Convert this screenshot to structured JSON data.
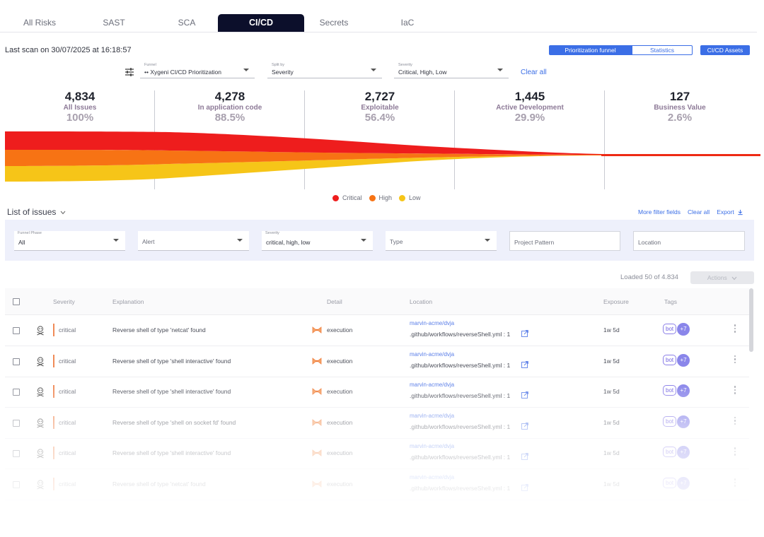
{
  "tabs": [
    {
      "label": "All Risks"
    },
    {
      "label": "SAST"
    },
    {
      "label": "SCA"
    },
    {
      "label": "CI/CD",
      "active": true
    },
    {
      "label": "Secrets"
    },
    {
      "label": "IaC"
    }
  ],
  "last_scan": "Last scan on 30/07/2025 at 16:18:57",
  "view_toggle": {
    "active": "Prioritization funnel",
    "inactive": "Statistics"
  },
  "assets_button": "CI/CD Assets",
  "funnel_filters": {
    "funnel": {
      "label": "Funnel",
      "value": "•• Xygeni CI/CD Prioritization"
    },
    "split_by": {
      "label": "Split by",
      "value": "Severity"
    },
    "severity": {
      "label": "Severity",
      "value": "Critical, High, Low"
    },
    "clear_all": "Clear all"
  },
  "funnel_stages": [
    {
      "count": "4,834",
      "name": "All Issues",
      "pct": "100%"
    },
    {
      "count": "4,278",
      "name": "In application code",
      "pct": "88.5%"
    },
    {
      "count": "2,727",
      "name": "Exploitable",
      "pct": "56.4%"
    },
    {
      "count": "1,445",
      "name": "Active Development",
      "pct": "29.9%"
    },
    {
      "count": "127",
      "name": "Business Value",
      "pct": "2.6%"
    }
  ],
  "legend": [
    {
      "label": "Critical",
      "color": "#ee1d1d"
    },
    {
      "label": "High",
      "color": "#f77314"
    },
    {
      "label": "Low",
      "color": "#f6c518"
    }
  ],
  "list": {
    "title": "List of issues",
    "more_filters": "More filter fields",
    "clear_all": "Clear all",
    "export": "Export",
    "filters": {
      "funnel_phase": {
        "label": "Funnel Phase",
        "value": "All"
      },
      "alert": {
        "placeholder": "Alert"
      },
      "severity": {
        "label": "Severity",
        "value": "critical, high, low"
      },
      "type": {
        "placeholder": "Type"
      },
      "project_pattern": {
        "placeholder": "Project Pattern"
      },
      "location": {
        "placeholder": "Location"
      }
    },
    "loaded": "Loaded 50 of 4.834",
    "actions": "Actions"
  },
  "table": {
    "headers": {
      "severity": "Severity",
      "explanation": "Explanation",
      "detail": "Detail",
      "location": "Location",
      "exposure": "Exposure",
      "tags": "Tags"
    },
    "rows": [
      {
        "severity": "critical",
        "explanation": "Reverse shell of type 'netcat' found",
        "detail": "execution",
        "repo": "marvin-acme/dvja",
        "path": ".github/workflows/reverseShell.yml : 1",
        "exposure": "1w 5d",
        "tag": "bot",
        "more_tags": "+7"
      },
      {
        "severity": "critical",
        "explanation": "Reverse shell of type 'shell interactive' found",
        "detail": "execution",
        "repo": "marvin-acme/dvja",
        "path": ".github/workflows/reverseShell.yml : 1",
        "exposure": "1w 5d",
        "tag": "bot",
        "more_tags": "+7"
      },
      {
        "severity": "critical",
        "explanation": "Reverse shell of type 'shell interactive' found",
        "detail": "execution",
        "repo": "marvin-acme/dvja",
        "path": ".github/workflows/reverseShell.yml : 1",
        "exposure": "1w 5d",
        "tag": "bot",
        "more_tags": "+7"
      },
      {
        "severity": "critical",
        "explanation": "Reverse shell of type 'shell on socket fd' found",
        "detail": "execution",
        "repo": "marvin-acme/dvja",
        "path": ".github/workflows/reverseShell.yml : 1",
        "exposure": "1w 5d",
        "tag": "bot",
        "more_tags": "+7"
      },
      {
        "severity": "critical",
        "explanation": "Reverse shell of type 'shell interactive' found",
        "detail": "execution",
        "repo": "marvin-acme/dvja",
        "path": ".github/workflows/reverseShell.yml : 1",
        "exposure": "1w 5d",
        "tag": "bot",
        "more_tags": "+7"
      },
      {
        "severity": "critical",
        "explanation": "Reverse shell of type 'netcat' found",
        "detail": "execution",
        "repo": "marvin-acme/dvja",
        "path": ".github/workflows/reverseShell.yml : 1",
        "exposure": "1w 5d",
        "tag": "bot",
        "more_tags": "+7"
      }
    ]
  },
  "colors": {
    "accent": "#3b6ee6",
    "tab_active_bg": "#0c0f2b",
    "critical": "#ee1d1d",
    "high": "#f77314",
    "low": "#f6c518"
  }
}
